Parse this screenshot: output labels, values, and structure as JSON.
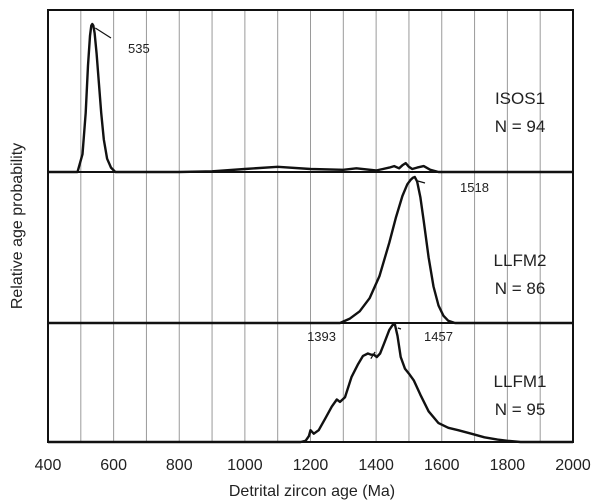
{
  "chart_data": {
    "type": "line",
    "xlabel": "Detrital zircon age (Ma)",
    "ylabel": "Relative age probability",
    "xlim": [
      400,
      2000
    ],
    "x_ticks": [
      400,
      600,
      800,
      1000,
      1200,
      1400,
      1600,
      1800,
      2000
    ],
    "x_tick_labels": [
      "400",
      "600",
      "800",
      "1000",
      "1200",
      "1400",
      "1600",
      "1800",
      "2000"
    ],
    "grid": "vertical lines every 100 Ma",
    "panels": [
      {
        "sample": "ISOS1",
        "n_label": "N = 94",
        "peaks": [
          {
            "age": 535,
            "label": "535"
          }
        ],
        "series": {
          "x": [
            490,
            505,
            515,
            522,
            528,
            532,
            535,
            538,
            542,
            548,
            555,
            562,
            570,
            580,
            592,
            605,
            650,
            800,
            900,
            1000,
            1100,
            1200,
            1300,
            1340,
            1400,
            1440,
            1455,
            1470,
            1480,
            1490,
            1500,
            1510,
            1525,
            1545,
            1565,
            1590
          ],
          "y": [
            0.0,
            0.12,
            0.4,
            0.72,
            0.92,
            0.99,
            1.0,
            0.99,
            0.94,
            0.8,
            0.6,
            0.4,
            0.22,
            0.09,
            0.03,
            0.0,
            0.0,
            0.0,
            0.005,
            0.02,
            0.035,
            0.02,
            0.015,
            0.025,
            0.01,
            0.03,
            0.04,
            0.025,
            0.045,
            0.06,
            0.035,
            0.02,
            0.03,
            0.04,
            0.015,
            0.0
          ]
        }
      },
      {
        "sample": "LLFM2",
        "n_label": "N = 86",
        "peaks": [
          {
            "age": 1518,
            "label": "1518"
          }
        ],
        "series": {
          "x": [
            1290,
            1320,
            1350,
            1380,
            1410,
            1440,
            1460,
            1480,
            1495,
            1505,
            1512,
            1518,
            1525,
            1535,
            1545,
            1560,
            1575,
            1590,
            1605,
            1620,
            1640
          ],
          "y": [
            0.0,
            0.03,
            0.08,
            0.17,
            0.32,
            0.55,
            0.72,
            0.87,
            0.95,
            0.98,
            0.995,
            1.0,
            0.97,
            0.86,
            0.7,
            0.45,
            0.25,
            0.12,
            0.05,
            0.015,
            0.0
          ]
        }
      },
      {
        "sample": "LLFM1",
        "n_label": "N = 95",
        "peaks": [
          {
            "age": 1393,
            "label": "1393"
          },
          {
            "age": 1457,
            "label": "1457"
          }
        ],
        "series": {
          "x": [
            1170,
            1185,
            1195,
            1200,
            1210,
            1225,
            1245,
            1265,
            1280,
            1290,
            1305,
            1325,
            1345,
            1360,
            1375,
            1385,
            1393,
            1402,
            1412,
            1425,
            1440,
            1450,
            1457,
            1465,
            1475,
            1488,
            1500,
            1515,
            1535,
            1560,
            1590,
            1620,
            1650,
            1690,
            1730,
            1770,
            1800,
            1840
          ],
          "y": [
            0.0,
            0.01,
            0.05,
            0.1,
            0.07,
            0.1,
            0.2,
            0.3,
            0.36,
            0.34,
            0.38,
            0.55,
            0.66,
            0.73,
            0.75,
            0.74,
            0.74,
            0.72,
            0.75,
            0.84,
            0.95,
            0.99,
            1.0,
            0.9,
            0.72,
            0.62,
            0.58,
            0.52,
            0.4,
            0.26,
            0.16,
            0.12,
            0.1,
            0.07,
            0.04,
            0.02,
            0.01,
            0.0
          ]
        }
      }
    ]
  }
}
